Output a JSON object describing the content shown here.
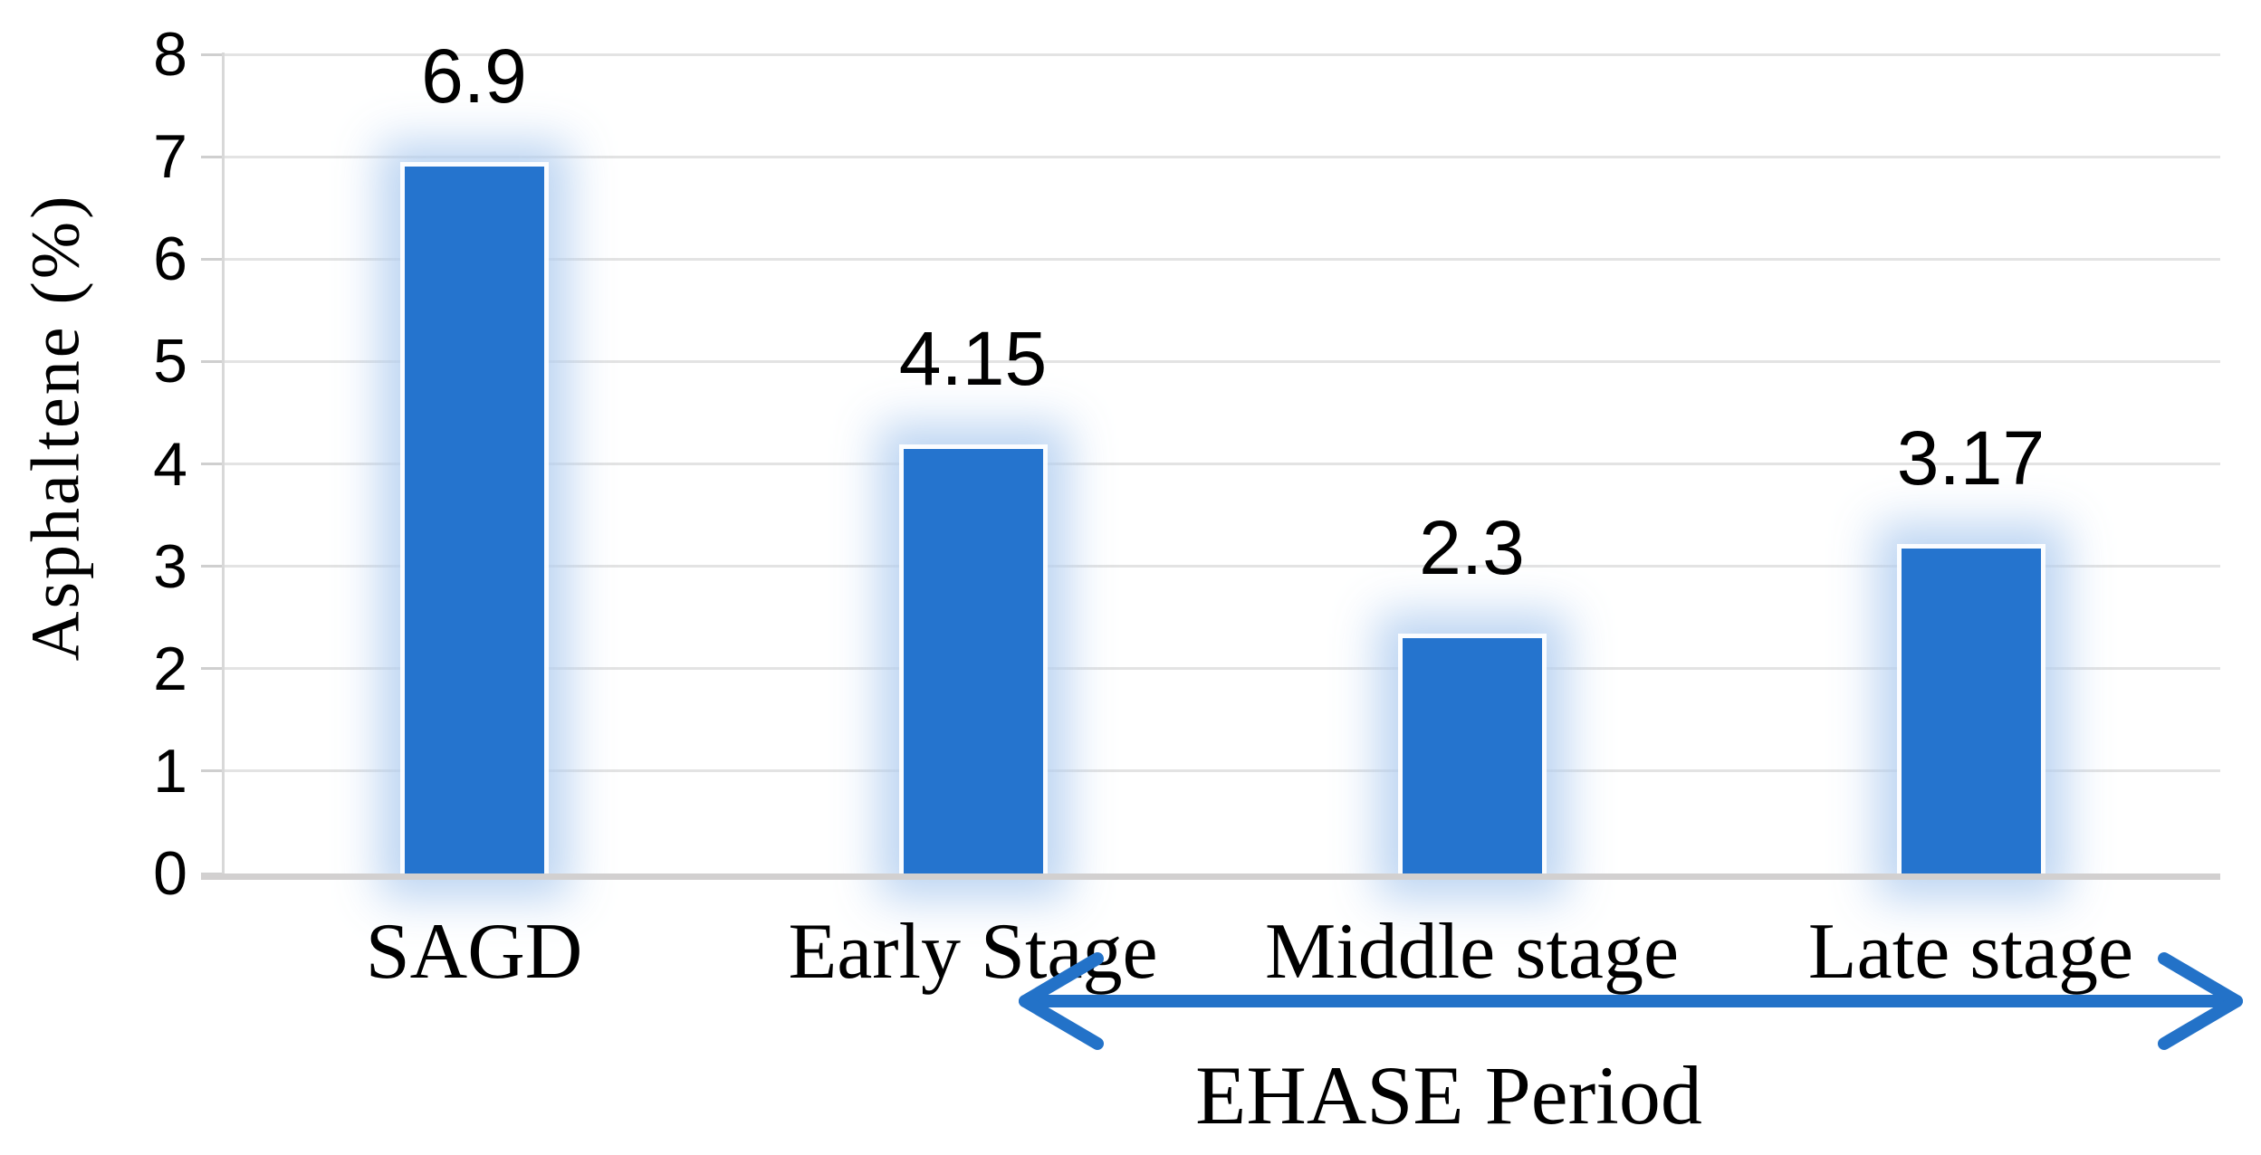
{
  "chart_data": {
    "type": "bar",
    "categories": [
      "SAGD",
      "Early Stage",
      "Middle stage",
      "Late stage"
    ],
    "values": [
      6.9,
      4.15,
      2.3,
      3.17
    ],
    "value_labels": [
      "6.9",
      "4.15",
      "2.3",
      "3.17"
    ],
    "ylabel": "Asphaltene（%）",
    "ylim": [
      0,
      8
    ],
    "ytick_interval": 1,
    "ytick_labels": [
      "0",
      "1",
      "2",
      "3",
      "4",
      "5",
      "6",
      "7",
      "8"
    ],
    "grid": true,
    "legend": "none",
    "bar_glow_effect": true,
    "annotation_arrow": {
      "label": "EHASE Period",
      "style": "double-headed horizontal arrow",
      "from_category": "Early Stage",
      "to_category": "Late stage"
    },
    "colors": {
      "bar": "#2574CE",
      "bar_glow": "#B2CEF0",
      "arrow": "#2372C8",
      "gridline": "#E3E3E3",
      "axis_line": "#D2D0D0",
      "text": "#000000",
      "background": "#FFFFFF"
    }
  }
}
